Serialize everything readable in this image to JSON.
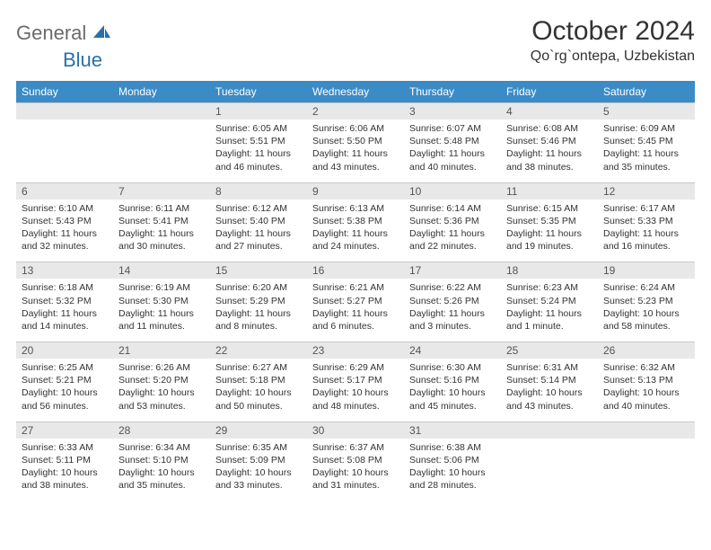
{
  "brand": {
    "part1": "General",
    "part2": "Blue"
  },
  "title": "October 2024",
  "location": "Qo`rg`ontepa, Uzbekistan",
  "colors": {
    "header_blue": "#3b8bc6",
    "accent_blue": "#2970a8",
    "row_gray": "#e8e8e8",
    "text": "#333333"
  },
  "weekdays": [
    "Sunday",
    "Monday",
    "Tuesday",
    "Wednesday",
    "Thursday",
    "Friday",
    "Saturday"
  ],
  "weeks": [
    [
      null,
      null,
      {
        "n": "1",
        "sr": "Sunrise: 6:05 AM",
        "ss": "Sunset: 5:51 PM",
        "d1": "Daylight: 11 hours",
        "d2": "and 46 minutes."
      },
      {
        "n": "2",
        "sr": "Sunrise: 6:06 AM",
        "ss": "Sunset: 5:50 PM",
        "d1": "Daylight: 11 hours",
        "d2": "and 43 minutes."
      },
      {
        "n": "3",
        "sr": "Sunrise: 6:07 AM",
        "ss": "Sunset: 5:48 PM",
        "d1": "Daylight: 11 hours",
        "d2": "and 40 minutes."
      },
      {
        "n": "4",
        "sr": "Sunrise: 6:08 AM",
        "ss": "Sunset: 5:46 PM",
        "d1": "Daylight: 11 hours",
        "d2": "and 38 minutes."
      },
      {
        "n": "5",
        "sr": "Sunrise: 6:09 AM",
        "ss": "Sunset: 5:45 PM",
        "d1": "Daylight: 11 hours",
        "d2": "and 35 minutes."
      }
    ],
    [
      {
        "n": "6",
        "sr": "Sunrise: 6:10 AM",
        "ss": "Sunset: 5:43 PM",
        "d1": "Daylight: 11 hours",
        "d2": "and 32 minutes."
      },
      {
        "n": "7",
        "sr": "Sunrise: 6:11 AM",
        "ss": "Sunset: 5:41 PM",
        "d1": "Daylight: 11 hours",
        "d2": "and 30 minutes."
      },
      {
        "n": "8",
        "sr": "Sunrise: 6:12 AM",
        "ss": "Sunset: 5:40 PM",
        "d1": "Daylight: 11 hours",
        "d2": "and 27 minutes."
      },
      {
        "n": "9",
        "sr": "Sunrise: 6:13 AM",
        "ss": "Sunset: 5:38 PM",
        "d1": "Daylight: 11 hours",
        "d2": "and 24 minutes."
      },
      {
        "n": "10",
        "sr": "Sunrise: 6:14 AM",
        "ss": "Sunset: 5:36 PM",
        "d1": "Daylight: 11 hours",
        "d2": "and 22 minutes."
      },
      {
        "n": "11",
        "sr": "Sunrise: 6:15 AM",
        "ss": "Sunset: 5:35 PM",
        "d1": "Daylight: 11 hours",
        "d2": "and 19 minutes."
      },
      {
        "n": "12",
        "sr": "Sunrise: 6:17 AM",
        "ss": "Sunset: 5:33 PM",
        "d1": "Daylight: 11 hours",
        "d2": "and 16 minutes."
      }
    ],
    [
      {
        "n": "13",
        "sr": "Sunrise: 6:18 AM",
        "ss": "Sunset: 5:32 PM",
        "d1": "Daylight: 11 hours",
        "d2": "and 14 minutes."
      },
      {
        "n": "14",
        "sr": "Sunrise: 6:19 AM",
        "ss": "Sunset: 5:30 PM",
        "d1": "Daylight: 11 hours",
        "d2": "and 11 minutes."
      },
      {
        "n": "15",
        "sr": "Sunrise: 6:20 AM",
        "ss": "Sunset: 5:29 PM",
        "d1": "Daylight: 11 hours",
        "d2": "and 8 minutes."
      },
      {
        "n": "16",
        "sr": "Sunrise: 6:21 AM",
        "ss": "Sunset: 5:27 PM",
        "d1": "Daylight: 11 hours",
        "d2": "and 6 minutes."
      },
      {
        "n": "17",
        "sr": "Sunrise: 6:22 AM",
        "ss": "Sunset: 5:26 PM",
        "d1": "Daylight: 11 hours",
        "d2": "and 3 minutes."
      },
      {
        "n": "18",
        "sr": "Sunrise: 6:23 AM",
        "ss": "Sunset: 5:24 PM",
        "d1": "Daylight: 11 hours",
        "d2": "and 1 minute."
      },
      {
        "n": "19",
        "sr": "Sunrise: 6:24 AM",
        "ss": "Sunset: 5:23 PM",
        "d1": "Daylight: 10 hours",
        "d2": "and 58 minutes."
      }
    ],
    [
      {
        "n": "20",
        "sr": "Sunrise: 6:25 AM",
        "ss": "Sunset: 5:21 PM",
        "d1": "Daylight: 10 hours",
        "d2": "and 56 minutes."
      },
      {
        "n": "21",
        "sr": "Sunrise: 6:26 AM",
        "ss": "Sunset: 5:20 PM",
        "d1": "Daylight: 10 hours",
        "d2": "and 53 minutes."
      },
      {
        "n": "22",
        "sr": "Sunrise: 6:27 AM",
        "ss": "Sunset: 5:18 PM",
        "d1": "Daylight: 10 hours",
        "d2": "and 50 minutes."
      },
      {
        "n": "23",
        "sr": "Sunrise: 6:29 AM",
        "ss": "Sunset: 5:17 PM",
        "d1": "Daylight: 10 hours",
        "d2": "and 48 minutes."
      },
      {
        "n": "24",
        "sr": "Sunrise: 6:30 AM",
        "ss": "Sunset: 5:16 PM",
        "d1": "Daylight: 10 hours",
        "d2": "and 45 minutes."
      },
      {
        "n": "25",
        "sr": "Sunrise: 6:31 AM",
        "ss": "Sunset: 5:14 PM",
        "d1": "Daylight: 10 hours",
        "d2": "and 43 minutes."
      },
      {
        "n": "26",
        "sr": "Sunrise: 6:32 AM",
        "ss": "Sunset: 5:13 PM",
        "d1": "Daylight: 10 hours",
        "d2": "and 40 minutes."
      }
    ],
    [
      {
        "n": "27",
        "sr": "Sunrise: 6:33 AM",
        "ss": "Sunset: 5:11 PM",
        "d1": "Daylight: 10 hours",
        "d2": "and 38 minutes."
      },
      {
        "n": "28",
        "sr": "Sunrise: 6:34 AM",
        "ss": "Sunset: 5:10 PM",
        "d1": "Daylight: 10 hours",
        "d2": "and 35 minutes."
      },
      {
        "n": "29",
        "sr": "Sunrise: 6:35 AM",
        "ss": "Sunset: 5:09 PM",
        "d1": "Daylight: 10 hours",
        "d2": "and 33 minutes."
      },
      {
        "n": "30",
        "sr": "Sunrise: 6:37 AM",
        "ss": "Sunset: 5:08 PM",
        "d1": "Daylight: 10 hours",
        "d2": "and 31 minutes."
      },
      {
        "n": "31",
        "sr": "Sunrise: 6:38 AM",
        "ss": "Sunset: 5:06 PM",
        "d1": "Daylight: 10 hours",
        "d2": "and 28 minutes."
      },
      null,
      null
    ]
  ]
}
